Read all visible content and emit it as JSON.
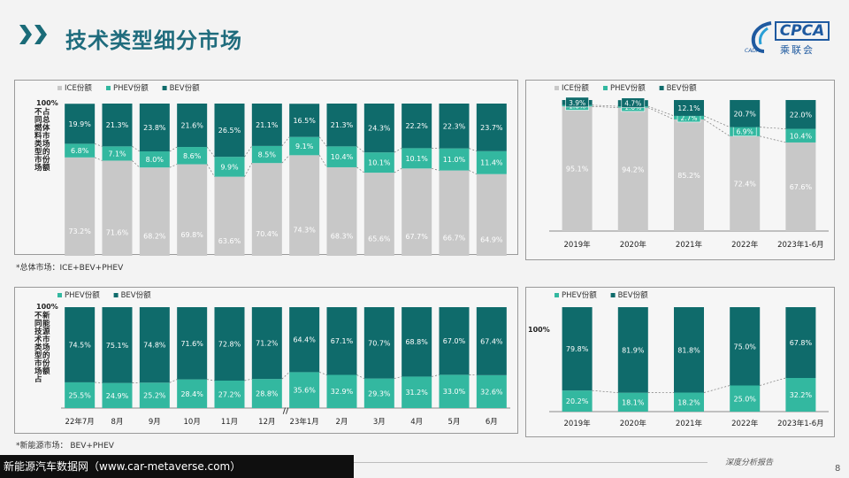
{
  "header": {
    "title": "技术类型细分市场"
  },
  "logo": {
    "text": "CPCA",
    "cn": "乘联会",
    "small": "CADA"
  },
  "notes": {
    "top": "*总体市场：ICE+BEV+PHEV",
    "bottom": "*新能源市场： BEV+PHEV"
  },
  "footer": {
    "watermark": "新能源汽车数据网（www.car-metaverse.com）",
    "tag": "深度分析报告",
    "page": "8"
  },
  "colors": {
    "ice": "#c8c8c8",
    "phev": "#33b8a0",
    "bev": "#0f6b6b",
    "title": "#1f6c7d"
  },
  "chart_data": [
    {
      "type": "bar",
      "stacked": true,
      "ylabel": "不同燃料类型市场占总体市场的份额",
      "ytick_top": "100%",
      "categories": [
        "22年7月",
        "8月",
        "9月",
        "10月",
        "11月",
        "12月",
        "23年1月",
        "2月",
        "3月",
        "4月",
        "5月",
        "6月"
      ],
      "axis_break_after_index": 5,
      "axis_break_symbol": "//",
      "series": [
        {
          "name": "ICE份额",
          "values": [
            73.2,
            71.6,
            68.2,
            69.8,
            63.6,
            70.4,
            74.3,
            68.3,
            65.6,
            67.7,
            66.7,
            64.9
          ],
          "labels": [
            "73.2%",
            "71.6%",
            "68.2%",
            "69.8%",
            "63.6%",
            "70.4%",
            "74.3%",
            "68.3%",
            "65.6%",
            "67.7%",
            "66.7%",
            "64.9%"
          ]
        },
        {
          "name": "PHEV份额",
          "values": [
            6.8,
            7.1,
            8.0,
            8.6,
            9.9,
            8.5,
            9.1,
            10.4,
            10.1,
            10.1,
            11.0,
            11.4
          ],
          "labels": [
            "6.8%",
            "7.1%",
            "8.0%",
            "8.6%",
            "9.9%",
            "8.5%",
            "9.1%",
            "10.4%",
            "10.1%",
            "10.1%",
            "11.0%",
            "11.4%"
          ]
        },
        {
          "name": "BEV份额",
          "values": [
            19.9,
            21.3,
            23.8,
            21.6,
            26.5,
            21.1,
            16.5,
            21.3,
            24.3,
            22.2,
            22.3,
            23.7
          ],
          "labels": [
            "19.9%",
            "21.3%",
            "23.8%",
            "21.6%",
            "26.5%",
            "21.1%",
            "16.5%",
            "21.3%",
            "24.3%",
            "22.2%",
            "22.3%",
            "23.7%"
          ]
        }
      ]
    },
    {
      "type": "bar",
      "stacked": true,
      "categories": [
        "2019年",
        "2020年",
        "2021年",
        "2022年",
        "2023年1-6月"
      ],
      "series": [
        {
          "name": "ICE份额",
          "values": [
            95.1,
            94.2,
            85.2,
            72.4,
            67.6
          ],
          "labels": [
            "95.1%",
            "94.2%",
            "85.2%",
            "72.4%",
            "67.6%"
          ]
        },
        {
          "name": "PHEV份额",
          "values": [
            1.0,
            1.0,
            2.7,
            6.9,
            10.4
          ],
          "labels": [
            "1.0%",
            "1.0%",
            "2.7%",
            "6.9%",
            "10.4%"
          ]
        },
        {
          "name": "BEV份额",
          "values": [
            3.9,
            4.7,
            12.1,
            20.7,
            22.0
          ],
          "labels": [
            "3.9%",
            "4.7%",
            "12.1%",
            "20.7%",
            "22.0%"
          ]
        }
      ]
    },
    {
      "type": "bar",
      "stacked": true,
      "ylabel": "不同技术类型市场占新能源市场的份额",
      "ytick_top": "100%",
      "categories": [
        "22年7月",
        "8月",
        "9月",
        "10月",
        "11月",
        "12月",
        "23年1月",
        "2月",
        "3月",
        "4月",
        "5月",
        "6月"
      ],
      "axis_break_after_index": 5,
      "axis_break_symbol": "//",
      "series": [
        {
          "name": "PHEV份额",
          "values": [
            25.5,
            24.9,
            25.2,
            28.4,
            27.2,
            28.8,
            35.6,
            32.9,
            29.3,
            31.2,
            33.0,
            32.6
          ],
          "labels": [
            "25.5%",
            "24.9%",
            "25.2%",
            "28.4%",
            "27.2%",
            "28.8%",
            "35.6%",
            "32.9%",
            "29.3%",
            "31.2%",
            "33.0%",
            "32.6%"
          ]
        },
        {
          "name": "BEV份额",
          "values": [
            74.5,
            75.1,
            74.8,
            71.6,
            72.8,
            71.2,
            64.4,
            67.1,
            70.7,
            68.8,
            67.0,
            67.4
          ],
          "labels": [
            "74.5%",
            "75.1%",
            "74.8%",
            "71.6%",
            "72.8%",
            "71.2%",
            "64.4%",
            "67.1%",
            "70.7%",
            "68.8%",
            "67.0%",
            "67.4%"
          ]
        }
      ]
    },
    {
      "type": "bar",
      "stacked": true,
      "ytick_top": "100%",
      "categories": [
        "2019年",
        "2020年",
        "2021年",
        "2022年",
        "2023年1-6月"
      ],
      "series": [
        {
          "name": "PHEV份额",
          "values": [
            20.2,
            18.1,
            18.2,
            25.0,
            32.2
          ],
          "labels": [
            "20.2%",
            "18.1%",
            "18.2%",
            "25.0%",
            "32.2%"
          ]
        },
        {
          "name": "BEV份额",
          "values": [
            79.8,
            81.9,
            81.8,
            75.0,
            67.8
          ],
          "labels": [
            "79.8%",
            "81.9%",
            "81.8%",
            "75.0%",
            "67.8%"
          ]
        }
      ]
    }
  ]
}
